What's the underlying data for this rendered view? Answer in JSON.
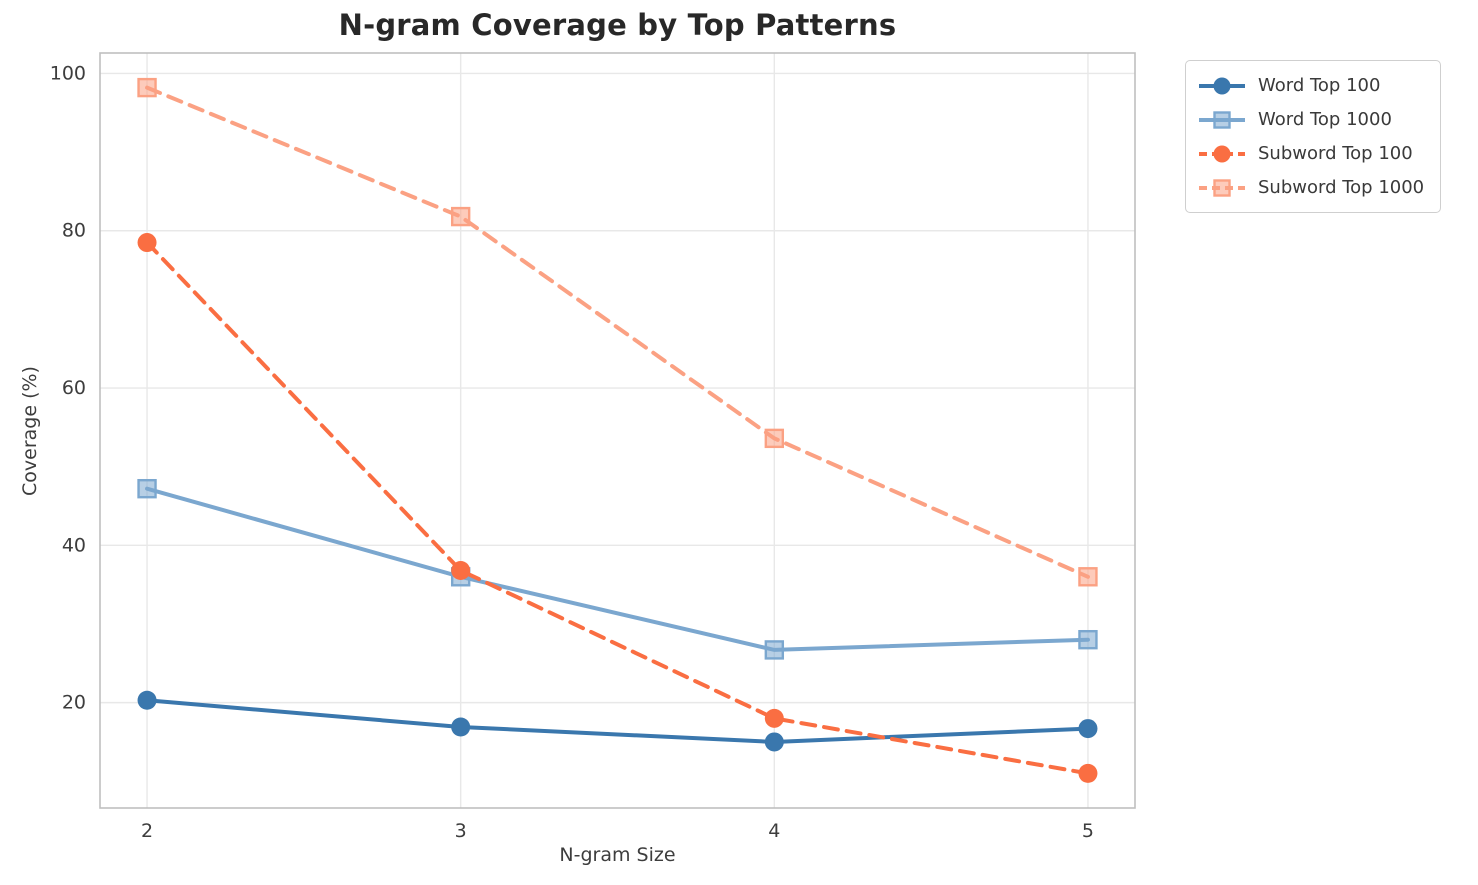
{
  "chart_data": {
    "type": "line",
    "title": "N-gram Coverage by Top Patterns",
    "xlabel": "N-gram Size",
    "ylabel": "Coverage (%)",
    "x": [
      2,
      3,
      4,
      5
    ],
    "x_ticks": [
      "2",
      "3",
      "4",
      "5"
    ],
    "y_ticks": [
      "20",
      "40",
      "60",
      "80",
      "100"
    ],
    "y_tick_values": [
      20,
      40,
      60,
      80,
      100
    ],
    "xlim": [
      1.85,
      5.15
    ],
    "ylim": [
      6.6,
      102.6
    ],
    "grid": true,
    "legend_position": "outside-upper-right",
    "series": [
      {
        "name": "Word Top 100",
        "color": "#3a77ad",
        "linestyle": "solid",
        "marker": "circle",
        "values": [
          20.3,
          16.9,
          15.0,
          16.7
        ]
      },
      {
        "name": "Word Top 1000",
        "color": "#7ba7cf",
        "linestyle": "solid",
        "marker": "square",
        "values": [
          47.2,
          36.0,
          26.7,
          28.0
        ]
      },
      {
        "name": "Subword Top 100",
        "color": "#fa6e42",
        "linestyle": "dashed",
        "marker": "circle",
        "values": [
          78.5,
          36.8,
          18.0,
          11.0
        ]
      },
      {
        "name": "Subword Top 1000",
        "color": "#fba183",
        "linestyle": "dashed",
        "marker": "square",
        "values": [
          98.2,
          81.8,
          53.6,
          36.0
        ]
      }
    ],
    "style": {
      "grid_color": "#e8e8e8",
      "spine_color": "#bfbfbf",
      "tick_label_color": "#3d3d3d",
      "background": "#ffffff"
    }
  }
}
